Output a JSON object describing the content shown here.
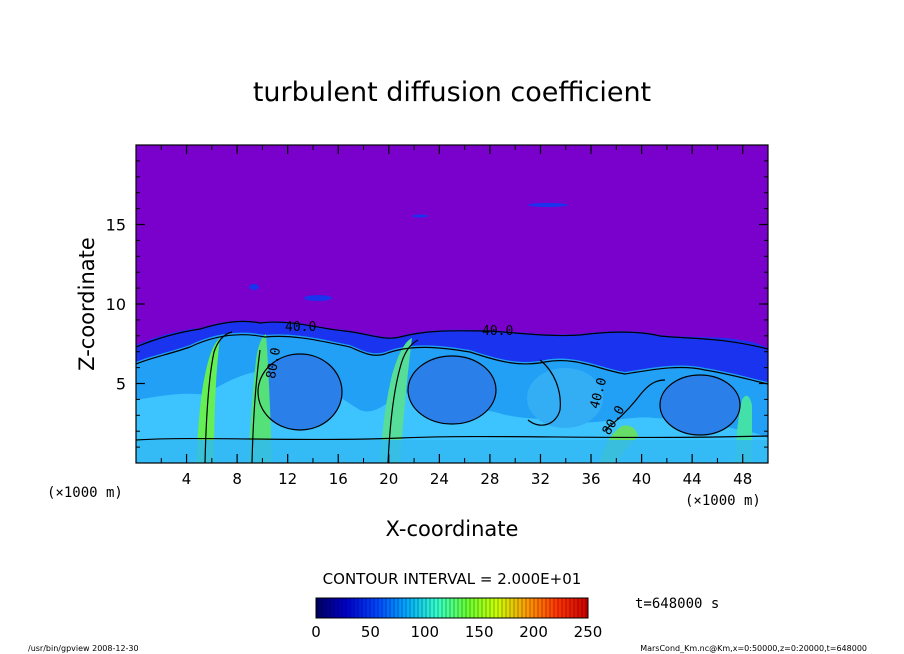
{
  "chart_data": {
    "type": "heatmap",
    "title": "turbulent diffusion coefficient",
    "xlabel": "X-coordinate",
    "ylabel": "Z-coordinate",
    "x_unit": "(×1000 m)",
    "z_unit": "(×1000 m)",
    "xlim": [
      0,
      50
    ],
    "ylim": [
      0,
      20
    ],
    "x_ticks": [
      "4",
      "8",
      "12",
      "16",
      "20",
      "24",
      "28",
      "32",
      "36",
      "40",
      "44",
      "48"
    ],
    "y_ticks": [
      "5",
      "10",
      "15"
    ],
    "contour_interval_label": "CONTOUR INTERVAL = 2.000E+01",
    "contour_labels": [
      "40.0",
      "80.0",
      "40.0",
      "80.0",
      "40.0"
    ],
    "colorbar": {
      "min": 0,
      "max": 250,
      "ticks": [
        "0",
        "50",
        "100",
        "150",
        "200",
        "250"
      ],
      "colors": [
        "#000066",
        "#0000cc",
        "#0044ff",
        "#00aaff",
        "#33ffcc",
        "#66ff33",
        "#ccff00",
        "#ff9900",
        "#ff3300",
        "#cc0000"
      ]
    },
    "time_label": "t=648000 s",
    "background_color": "#7a00cc"
  },
  "footer": {
    "left": "/usr/bin/gpview   2008-12-30",
    "right": "MarsCond_Km.nc@Km,x=0:50000,z=0:20000,t=648000"
  }
}
